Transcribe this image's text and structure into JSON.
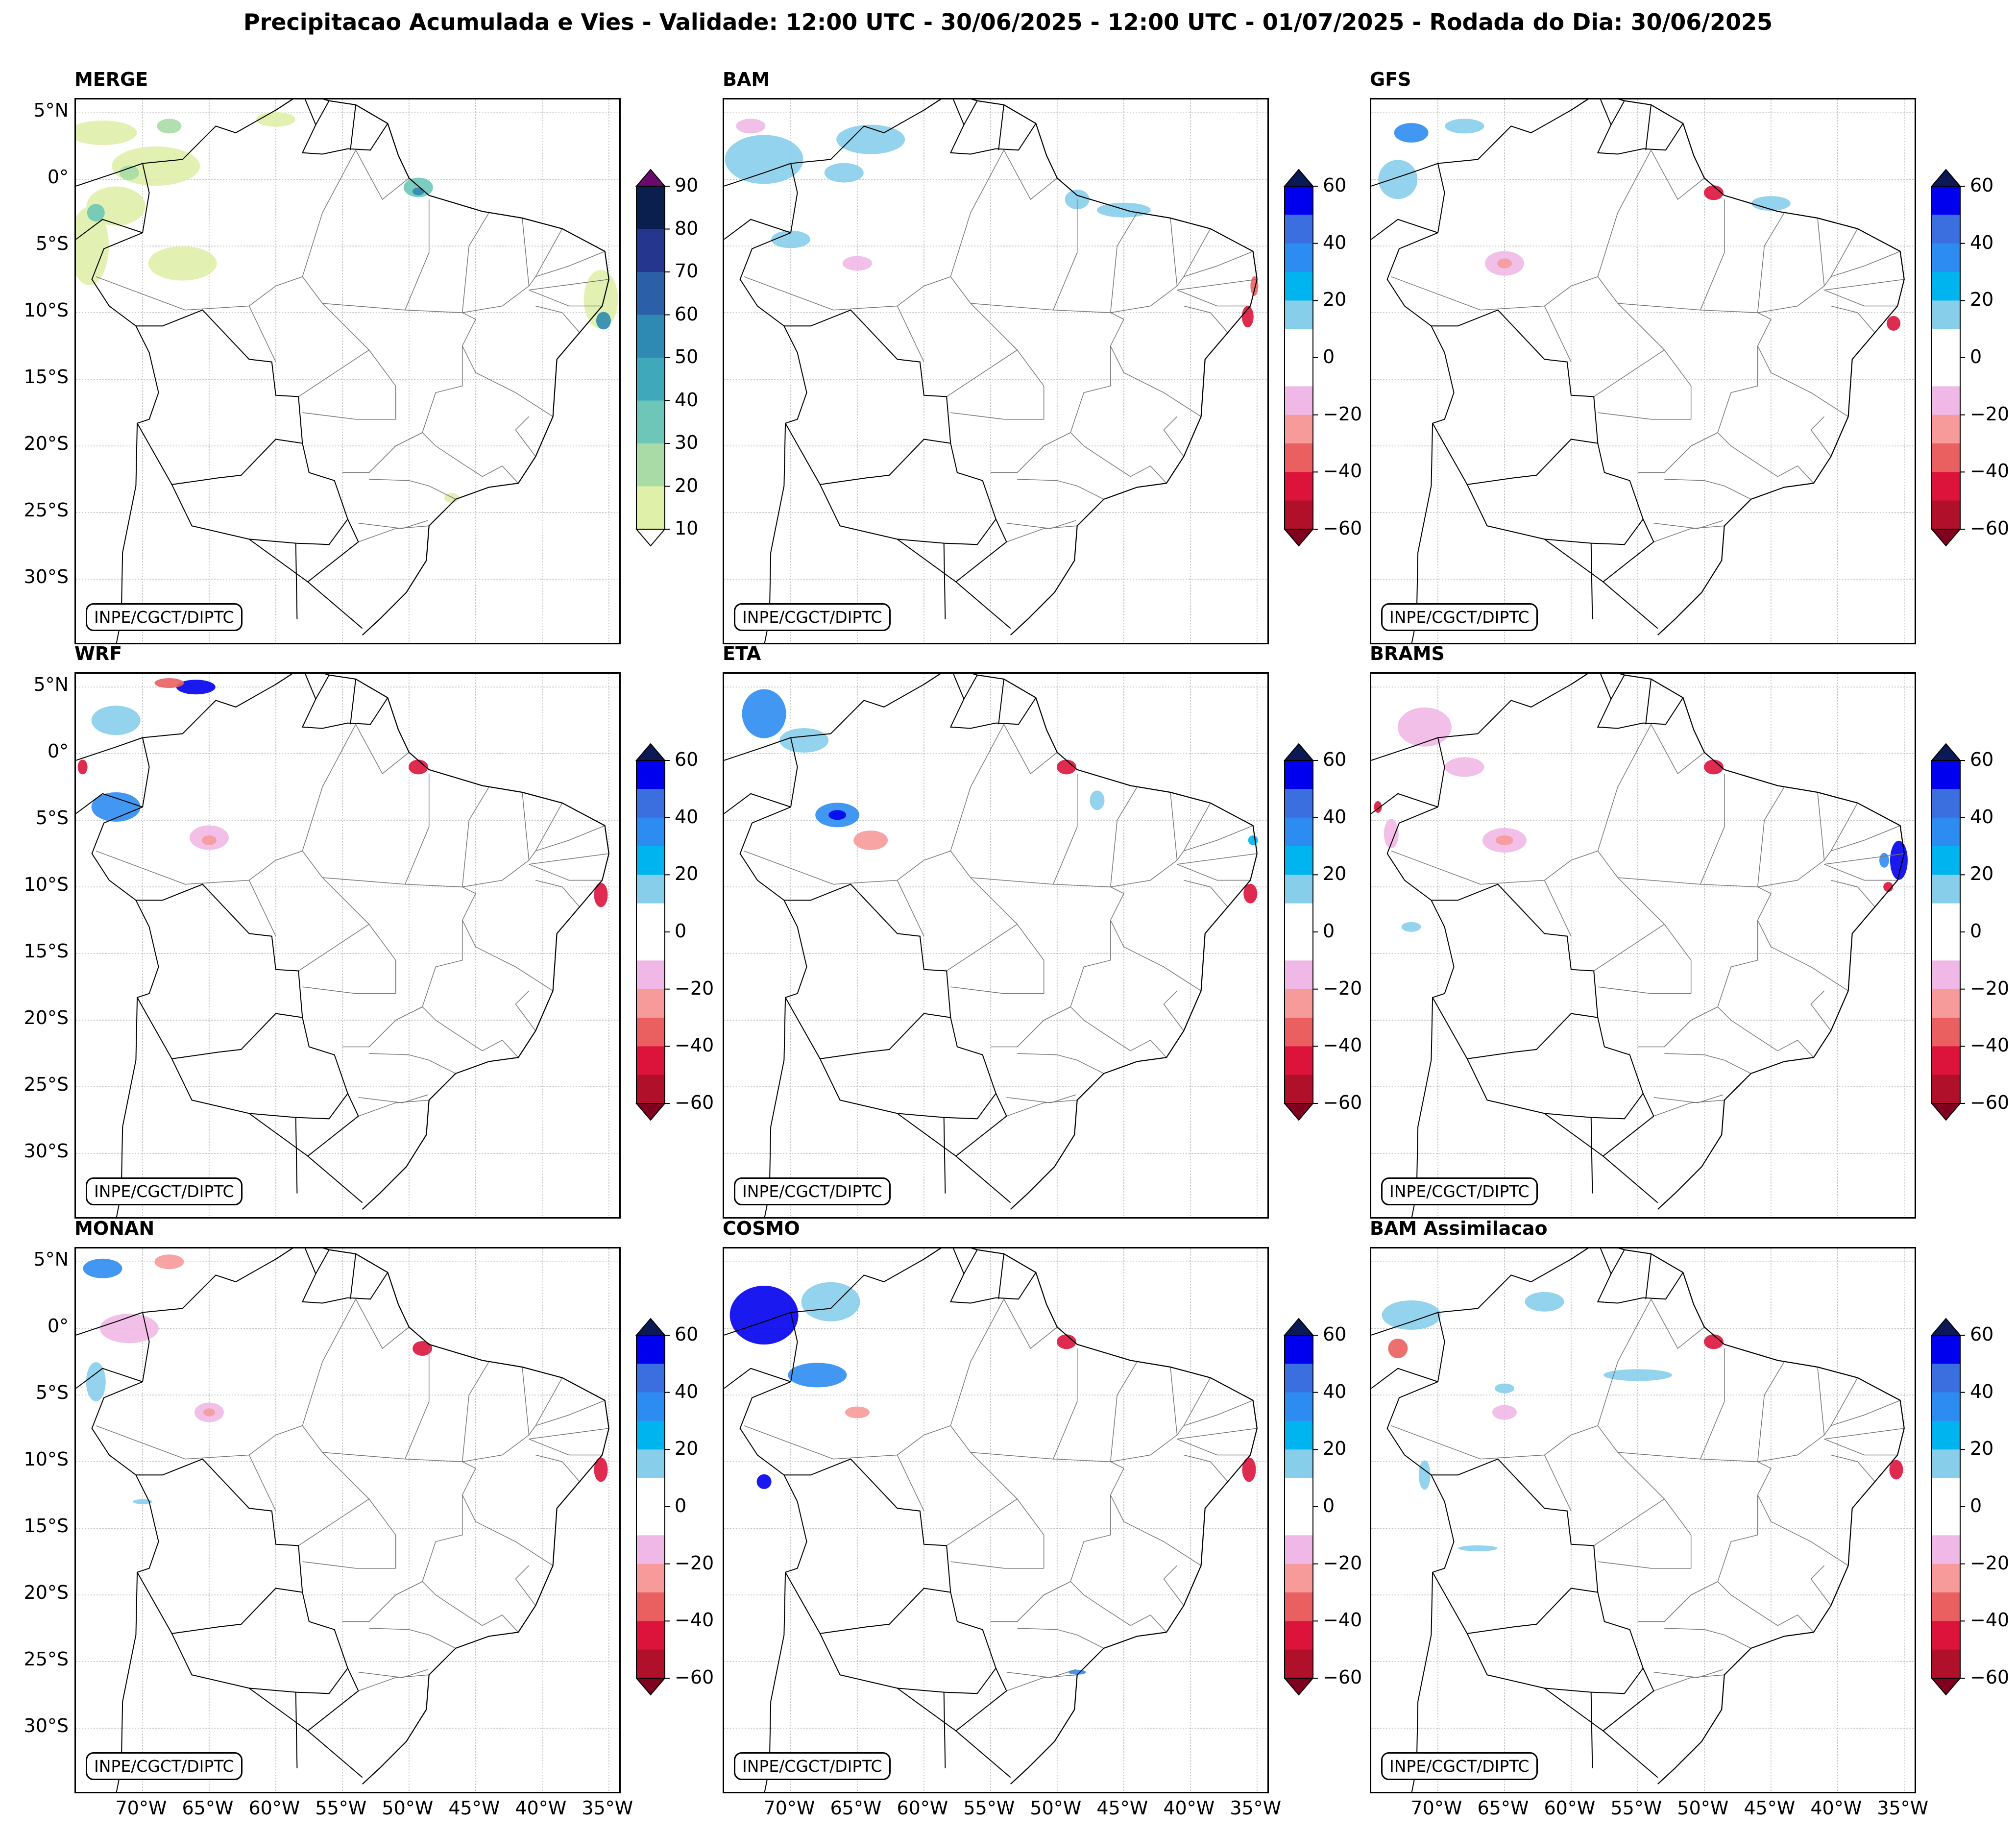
{
  "title": "Precipitacao Acumulada e Vies - Validade: 12:00 UTC - 30/06/2025 - 12:00 UTC - 01/07/2025 - Rodada do Dia: 30/06/2025",
  "credit": "INPE/CGCT/DIPTC",
  "lat_labels": [
    "5°N",
    "0°",
    "5°S",
    "10°S",
    "15°S",
    "20°S",
    "25°S",
    "30°S"
  ],
  "lon_labels": [
    "70°W",
    "65°W",
    "60°W",
    "55°W",
    "50°W",
    "45°W",
    "40°W",
    "35°W"
  ],
  "colorbars": {
    "precip": {
      "ticks": [
        "90",
        "80",
        "70",
        "60",
        "50",
        "40",
        "30",
        "20",
        "10"
      ],
      "colors": [
        "#0b1f4f",
        "#25368f",
        "#2b5fa8",
        "#2f8ab3",
        "#3fa8bb",
        "#6ec6b8",
        "#a9dba6",
        "#dff0a8"
      ],
      "extend_max": "#6a0a6a",
      "extend_min": "#ffffff"
    },
    "bias": {
      "ticks": [
        "60",
        "40",
        "20",
        "0",
        "−20",
        "−40",
        "−60"
      ],
      "colors": [
        "#0000ee",
        "#3b6fe0",
        "#2d8cf2",
        "#00b4f0",
        "#87ceeb",
        "#ffffff",
        "#ffffff",
        "#f0b8e6",
        "#f79a9a",
        "#ea6060",
        "#dc143c",
        "#b0102a"
      ],
      "extend_max": "#0b1a55",
      "extend_min": "#800020"
    }
  },
  "panels": [
    {
      "title": "MERGE",
      "type": "precip",
      "show_lat": true,
      "show_lon": false
    },
    {
      "title": "BAM",
      "type": "bias",
      "show_lat": false,
      "show_lon": false
    },
    {
      "title": "GFS",
      "type": "bias",
      "show_lat": false,
      "show_lon": false
    },
    {
      "title": "WRF",
      "type": "bias",
      "show_lat": true,
      "show_lon": false
    },
    {
      "title": "ETA",
      "type": "bias",
      "show_lat": false,
      "show_lon": false
    },
    {
      "title": "BRAMS",
      "type": "bias",
      "show_lat": false,
      "show_lon": false
    },
    {
      "title": "MONAN",
      "type": "bias",
      "show_lat": true,
      "show_lon": true
    },
    {
      "title": "COSMO",
      "type": "bias",
      "show_lat": false,
      "show_lon": true
    },
    {
      "title": "BAM Assimilacao",
      "type": "bias",
      "show_lat": false,
      "show_lon": true
    }
  ]
}
